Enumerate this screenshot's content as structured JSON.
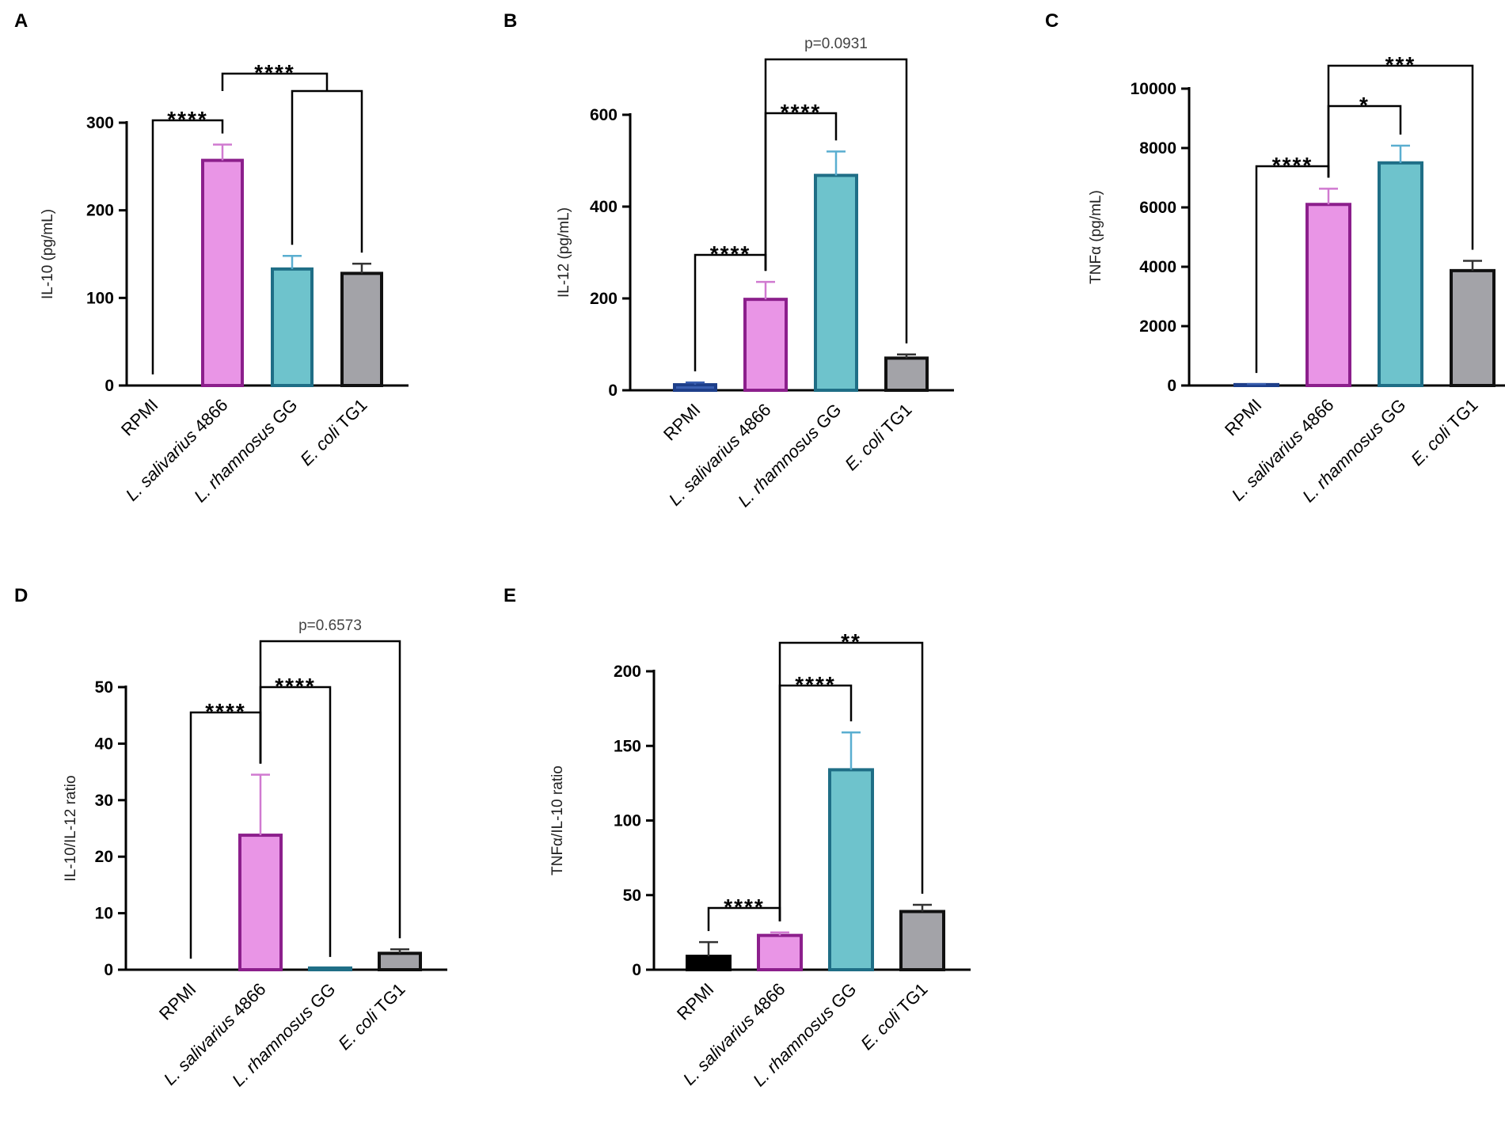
{
  "chart_data": [
    {
      "panel": "A",
      "type": "bar",
      "ylabel": "IL-10 (pg/mL)",
      "ylim": [
        0,
        300
      ],
      "yticks": [
        0,
        100,
        200,
        300
      ],
      "categories": [
        {
          "main": "RPMI",
          "suffix": "",
          "italic": false
        },
        {
          "main": "L. salivarius",
          "suffix": " 4866",
          "italic": true
        },
        {
          "main": "L. rhamnosus",
          "suffix": " GG",
          "italic": true
        },
        {
          "main": "E. coli",
          "suffix": " TG1",
          "italic": true
        }
      ],
      "values": [
        0,
        257,
        133,
        128
      ],
      "errors": [
        0,
        18,
        15,
        11
      ],
      "brackets": [
        {
          "label": "****",
          "from": 0,
          "to": 1,
          "level": 0
        },
        {
          "label": "****",
          "from": 1,
          "to": [
            2,
            3
          ],
          "level": 1
        }
      ]
    },
    {
      "panel": "B",
      "type": "bar",
      "ylabel": "IL-12 (pg/mL)",
      "ylim": [
        0,
        600
      ],
      "yticks": [
        0,
        200,
        400,
        600
      ],
      "categories": [
        {
          "main": "RPMI",
          "suffix": "",
          "italic": false
        },
        {
          "main": "L. salivarius",
          "suffix": " 4866",
          "italic": true
        },
        {
          "main": "L. rhamnosus",
          "suffix": " GG",
          "italic": true
        },
        {
          "main": "E. coli",
          "suffix": " TG1",
          "italic": true
        }
      ],
      "values": [
        12,
        198,
        468,
        70
      ],
      "errors": [
        5,
        38,
        52,
        8
      ],
      "brackets": [
        {
          "label": "****",
          "from": 0,
          "to": 1,
          "level": 0
        },
        {
          "label": "****",
          "from": 1,
          "to": 2,
          "level": 1
        },
        {
          "label": "p=0.0931",
          "from": 1,
          "to": 3,
          "level": 2
        }
      ]
    },
    {
      "panel": "C",
      "type": "bar",
      "ylabel": "TNFα (pg/mL)",
      "ylim": [
        0,
        10000
      ],
      "yticks": [
        0,
        2000,
        4000,
        6000,
        8000,
        10000
      ],
      "categories": [
        {
          "main": "RPMI",
          "suffix": "",
          "italic": false
        },
        {
          "main": "L. salivarius",
          "suffix": " 4866",
          "italic": true
        },
        {
          "main": "L. rhamnosus",
          "suffix": " GG",
          "italic": true
        },
        {
          "main": "E. coli",
          "suffix": " TG1",
          "italic": true
        }
      ],
      "values": [
        30,
        6100,
        7500,
        3870
      ],
      "errors": [
        20,
        530,
        580,
        330
      ],
      "brackets": [
        {
          "label": "****",
          "from": 0,
          "to": 1,
          "level": 0
        },
        {
          "label": "*",
          "from": 1,
          "to": 2,
          "level": 1
        },
        {
          "label": "***",
          "from": 1,
          "to": 3,
          "level": 2
        }
      ]
    },
    {
      "panel": "D",
      "type": "bar",
      "ylabel": "IL-10/IL-12 ratio",
      "ylim": [
        0,
        50
      ],
      "yticks": [
        0,
        10,
        20,
        30,
        40,
        50
      ],
      "categories": [
        {
          "main": "RPMI",
          "suffix": "",
          "italic": false
        },
        {
          "main": "L. salivarius",
          "suffix": " 4866",
          "italic": true
        },
        {
          "main": "L. rhamnosus",
          "suffix": " GG",
          "italic": true
        },
        {
          "main": "E. coli",
          "suffix": " TG1",
          "italic": true
        }
      ],
      "values": [
        0,
        23.8,
        0.3,
        2.9
      ],
      "errors": [
        0,
        10.7,
        0,
        0.7
      ],
      "brackets": [
        {
          "label": "****",
          "from": 0,
          "to": 1,
          "level": 0
        },
        {
          "label": "****",
          "from": 1,
          "to": 2,
          "level": 1
        },
        {
          "label": "p=0.6573",
          "from": 1,
          "to": 3,
          "level": 2
        }
      ]
    },
    {
      "panel": "E",
      "type": "bar",
      "ylabel": "TNFα/IL-10 ratio",
      "ylim": [
        0,
        200
      ],
      "yticks": [
        0,
        50,
        100,
        150,
        200
      ],
      "categories": [
        {
          "main": "RPMI",
          "suffix": "",
          "italic": false
        },
        {
          "main": "L. salivarius",
          "suffix": " 4866",
          "italic": true
        },
        {
          "main": "L. rhamnosus",
          "suffix": " GG",
          "italic": true
        },
        {
          "main": "E. coli",
          "suffix": " TG1",
          "italic": true
        }
      ],
      "values": [
        9,
        23,
        134,
        39
      ],
      "errors": [
        9.5,
        2,
        25,
        4.5
      ],
      "brackets": [
        {
          "label": "****",
          "from": 0,
          "to": 1,
          "level": 0
        },
        {
          "label": "****",
          "from": 1,
          "to": 2,
          "level": 1
        },
        {
          "label": "**",
          "from": 1,
          "to": 3,
          "level": 2
        }
      ]
    }
  ],
  "colors": {
    "bar_fills": [
      "#3a5fb0",
      "#e995e6",
      "#6ec3cc",
      "#a3a3a8"
    ],
    "bar_strokes": [
      "#1e3f8a",
      "#8c1f8c",
      "#1f6e86",
      "#111111"
    ],
    "error_colors": [
      "#3a5fb0",
      "#d07ad0",
      "#5aaed0",
      "#333333"
    ],
    "panel_e_first_bar_fill": "#000000"
  }
}
